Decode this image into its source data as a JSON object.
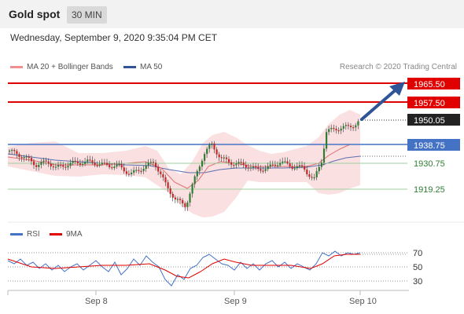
{
  "header": {
    "title": "Gold spot",
    "timeframe": "30 MIN"
  },
  "chart_info": {
    "datetime": "Wednesday, September 9, 2020 9:35:04 PM CET",
    "credit": "Research © 2020 Trading Central"
  },
  "legend": [
    {
      "label": "MA 20 + Bollinger Bands",
      "color": "#f08f8f"
    },
    {
      "label": "MA 50",
      "color": "#2f5597"
    }
  ],
  "price_levels": [
    {
      "label": "1965.50",
      "value": 1965.5,
      "style": "resistance"
    },
    {
      "label": "1957.50",
      "value": 1957.5,
      "style": "resistance"
    },
    {
      "label": "1950.05",
      "value": 1950.05,
      "style": "current"
    },
    {
      "label": "1938.75",
      "value": 1938.75,
      "style": "pivot"
    },
    {
      "label": "1930.75",
      "value": 1930.75,
      "style": "support"
    },
    {
      "label": "1919.25",
      "value": 1919.25,
      "style": "support"
    }
  ],
  "rsi_legend": [
    {
      "label": "RSI",
      "color": "#4472c4"
    },
    {
      "label": "9MA",
      "color": "#e00000"
    }
  ],
  "rsi_levels": [
    "70",
    "50",
    "30"
  ],
  "x_labels": [
    "Sep 8",
    "Sep 9",
    "Sep 10"
  ],
  "colors": {
    "up": "#2e7d32",
    "down": "#c62828",
    "resistance": "#e00000",
    "pivot": "#4472c4",
    "support": "#5cb85c",
    "arrow": "#2f5597",
    "band": "#fadadd"
  }
}
